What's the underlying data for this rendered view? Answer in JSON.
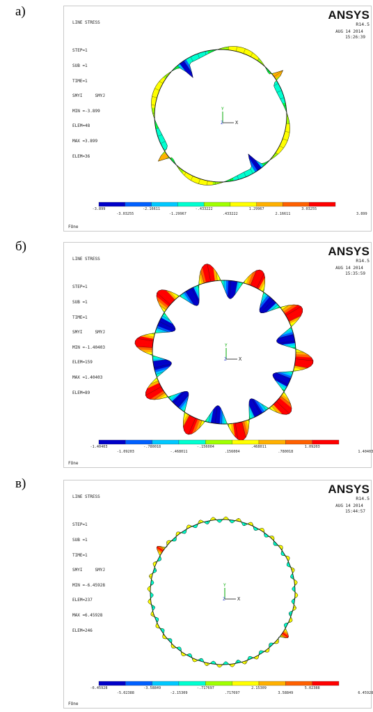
{
  "panels": [
    {
      "label": "а)",
      "header": [
        "LINE STRESS",
        "STEP=1",
        "SUB =1",
        "TIME=1",
        "SMYI     SMYJ",
        "MIN =-3.899",
        "ELEM=48",
        "MAX =3.899",
        "ELEM=36"
      ],
      "logo": "ANSYS",
      "version": "R14.5",
      "date": "AUG 14 2014",
      "time": "15:26:39",
      "legend_top": [
        "-3.899",
        "-2.16611",
        "-.433222",
        "1.29967",
        "3.03255"
      ],
      "legend_bottom": [
        "-3.03255",
        "-1.29967",
        ".433222",
        "2.16611",
        "3.899"
      ],
      "footer": "FOne",
      "axis_x": "X",
      "axis_y": "Y",
      "axis_z": "Z"
    },
    {
      "label": "б)",
      "header": [
        "LINE STRESS",
        "STEP=1",
        "SUB =1",
        "TIME=1",
        "SMYI     SMYJ",
        "MIN =-1.40403",
        "ELEM=159",
        "MAX =1.40403",
        "ELEM=89"
      ],
      "logo": "ANSYS",
      "version": "R14.5",
      "date": "AUG 14 2014",
      "time": "15:35:59",
      "legend_top": [
        "-1.40403",
        "-.780018",
        "-.156004",
        ".468011",
        "1.09203"
      ],
      "legend_bottom": [
        "-1.09203",
        "-.468011",
        ".156004",
        ".780018",
        "1.40403"
      ],
      "footer": "FOne",
      "axis_x": "X",
      "axis_y": "Y",
      "axis_z": "Z"
    },
    {
      "label": "в)",
      "header": [
        "LINE STRESS",
        "STEP=1",
        "SUB =1",
        "TIME=1",
        "SMYI     SMYJ",
        "MIN =-6.45928",
        "ELEM=237",
        "MAX =6.45928",
        "ELEM=246"
      ],
      "logo": "ANSYS",
      "version": "R14.5",
      "date": "AUG 14 2014",
      "time": "15:44:57",
      "legend_top": [
        "-6.45928",
        "-3.58849",
        "-.717697",
        "2.15309",
        "5.02388"
      ],
      "legend_bottom": [
        "-5.02388",
        "-2.15309",
        ".717697",
        "3.58849",
        "6.45928"
      ],
      "footer": "FOne",
      "axis_x": "X",
      "axis_y": "Y",
      "axis_z": "Z"
    }
  ],
  "colors": {
    "scale": [
      "#0000c8",
      "#0060ff",
      "#00c8ff",
      "#00ffd0",
      "#00ff40",
      "#a0ff00",
      "#ffff00",
      "#ffb000",
      "#ff6000",
      "#ff0000"
    ],
    "line": "#111111",
    "frame": "#c9c9c9"
  }
}
